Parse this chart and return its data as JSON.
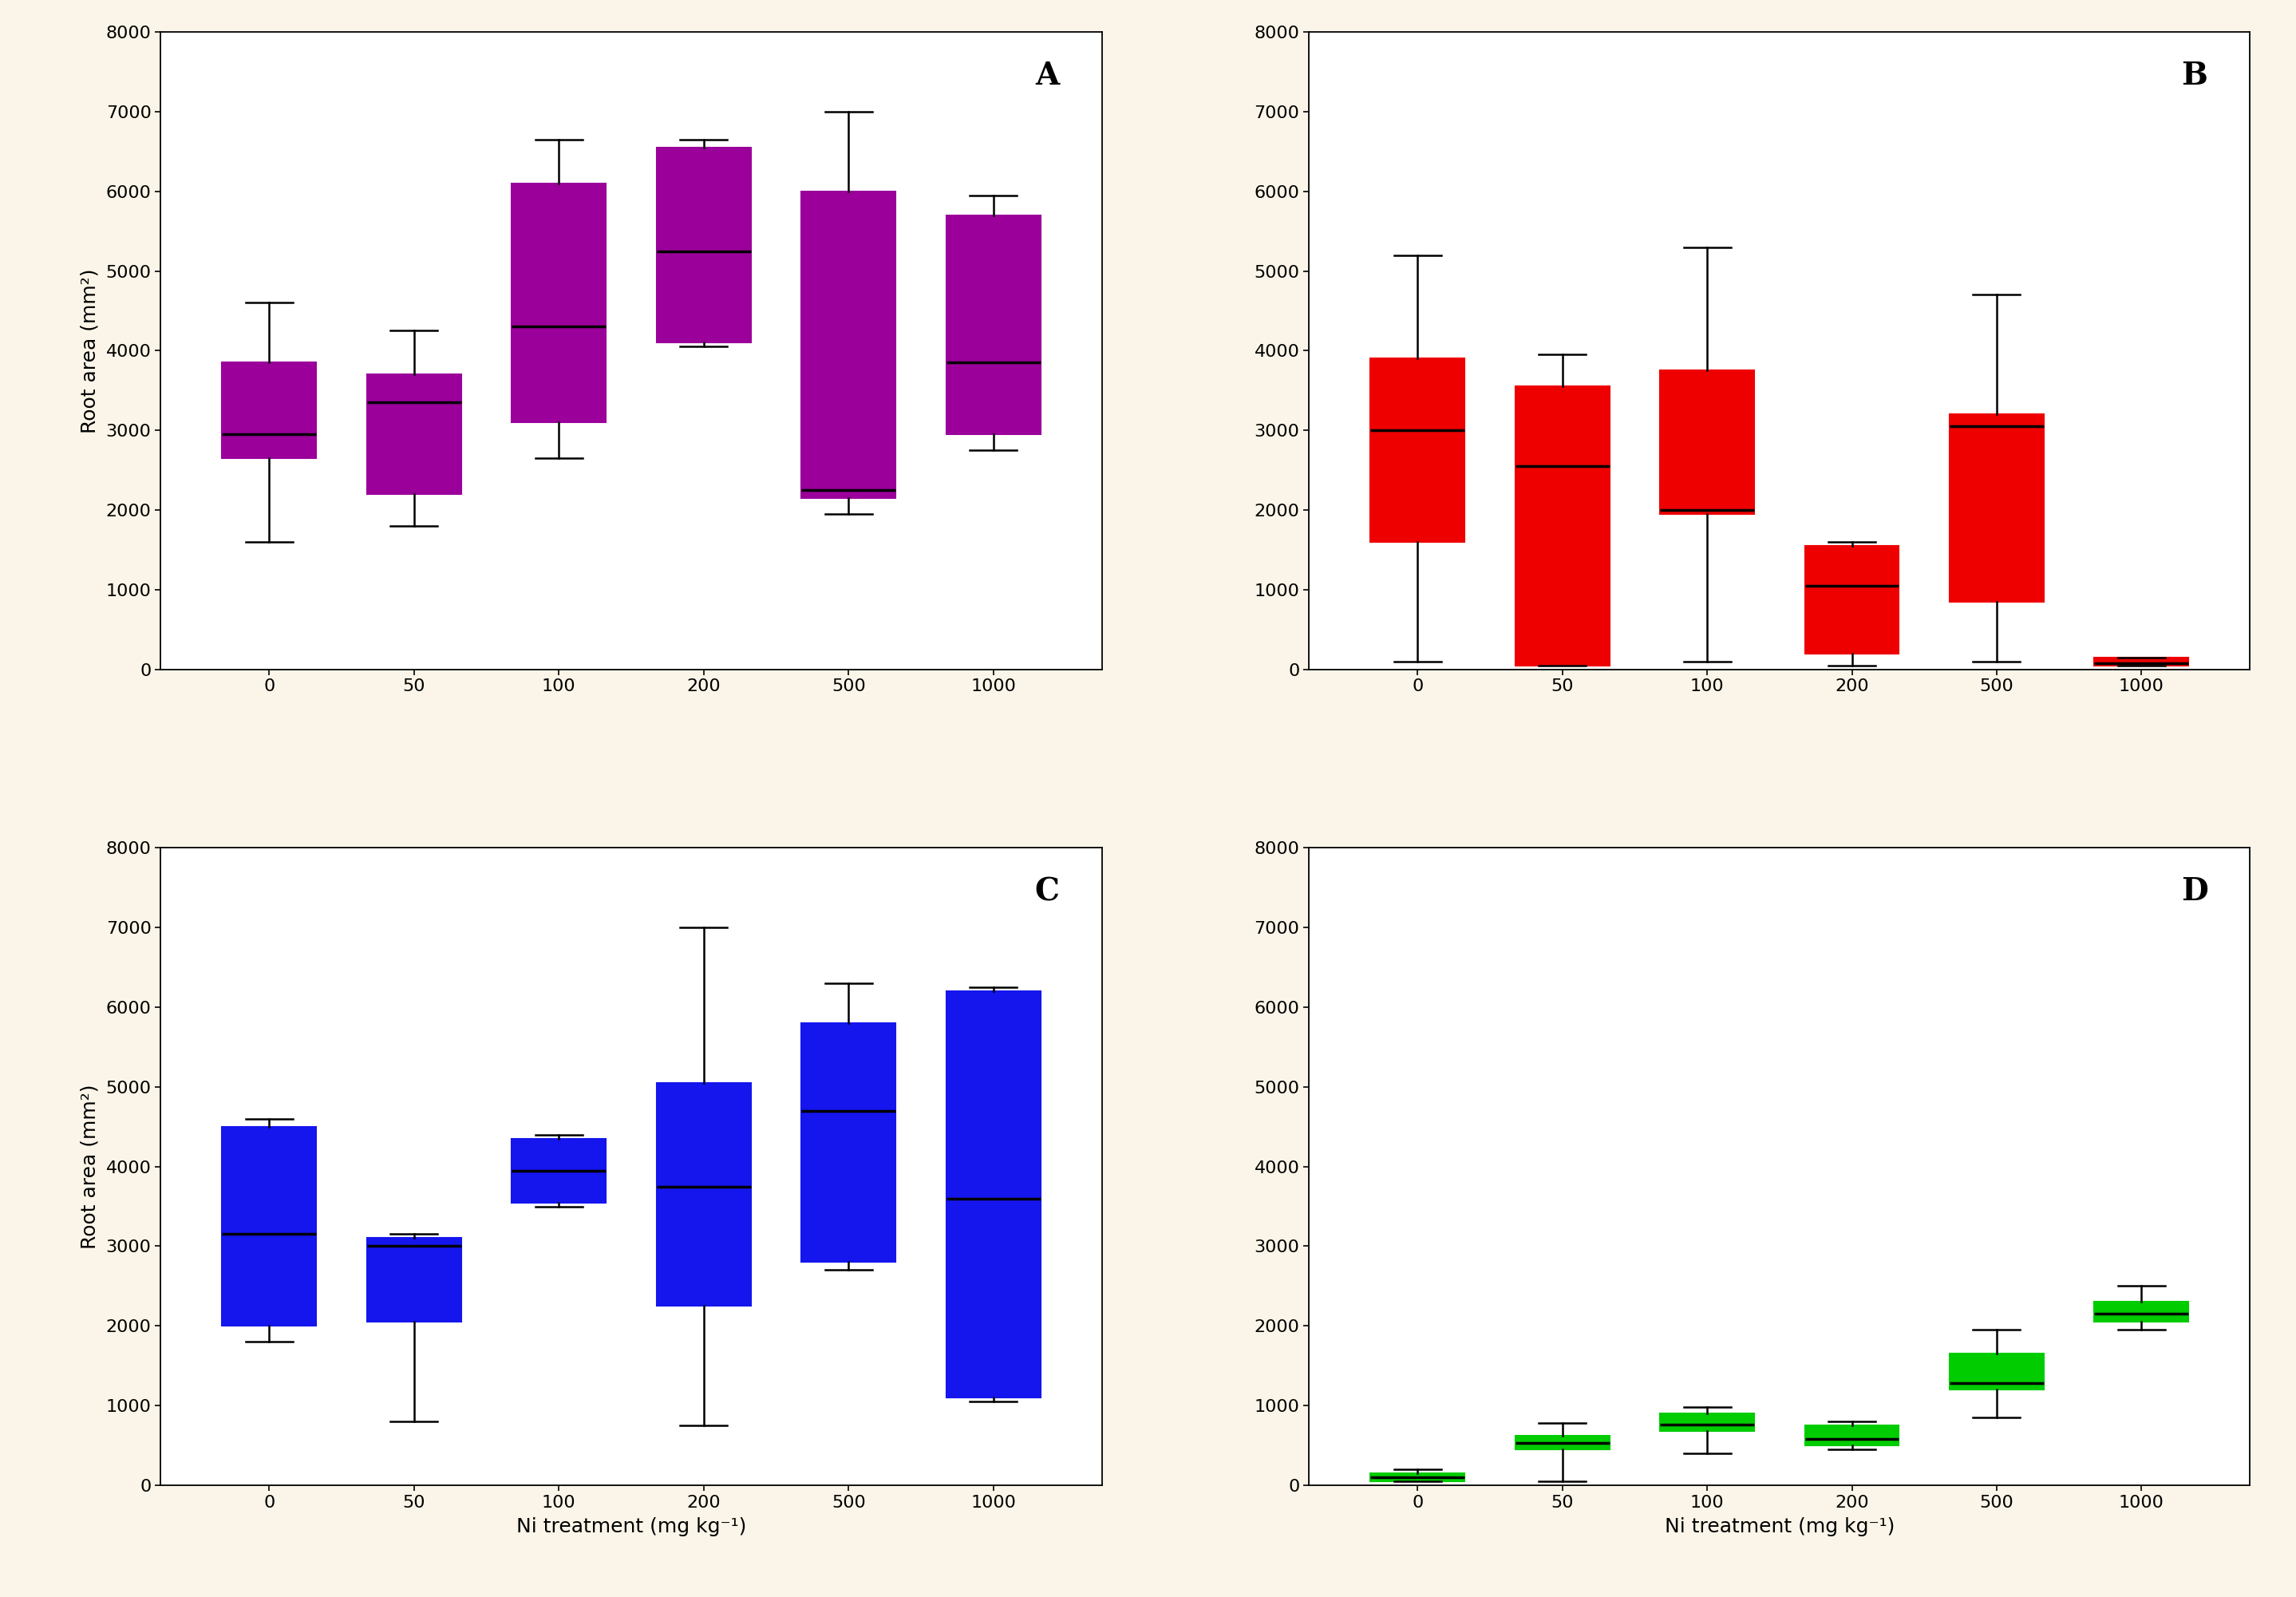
{
  "background_color": "#faf5e8",
  "panel_bg": "#ffffff",
  "categories": [
    0,
    50,
    100,
    200,
    500,
    1000
  ],
  "panels": [
    {
      "label": "A",
      "color": "#9b009b",
      "boxes": [
        {
          "whislo": 1600,
          "q1": 2650,
          "med": 2950,
          "q3": 3850,
          "whishi": 4600
        },
        {
          "whislo": 1800,
          "q1": 2200,
          "med": 3350,
          "q3": 3700,
          "whishi": 4250
        },
        {
          "whislo": 2650,
          "q1": 3100,
          "med": 4300,
          "q3": 6100,
          "whishi": 6650
        },
        {
          "whislo": 4050,
          "q1": 4100,
          "med": 5250,
          "q3": 6550,
          "whishi": 6650
        },
        {
          "whislo": 1950,
          "q1": 2150,
          "med": 2250,
          "q3": 6000,
          "whishi": 7000
        },
        {
          "whislo": 2750,
          "q1": 2950,
          "med": 3850,
          "q3": 5700,
          "whishi": 5950
        }
      ],
      "ylabel": "Root area (mm²)",
      "xlabel": ""
    },
    {
      "label": "B",
      "color": "#ee0000",
      "boxes": [
        {
          "whislo": 100,
          "q1": 1600,
          "med": 3000,
          "q3": 3900,
          "whishi": 5200
        },
        {
          "whislo": 50,
          "q1": 50,
          "med": 2550,
          "q3": 3550,
          "whishi": 3950
        },
        {
          "whislo": 100,
          "q1": 1950,
          "med": 2000,
          "q3": 3750,
          "whishi": 5300
        },
        {
          "whislo": 50,
          "q1": 200,
          "med": 1050,
          "q3": 1550,
          "whishi": 1600
        },
        {
          "whislo": 100,
          "q1": 850,
          "med": 3050,
          "q3": 3200,
          "whishi": 4700
        },
        {
          "whislo": 50,
          "q1": 50,
          "med": 80,
          "q3": 150,
          "whishi": 150
        }
      ],
      "ylabel": "",
      "xlabel": ""
    },
    {
      "label": "C",
      "color": "#1515ee",
      "boxes": [
        {
          "whislo": 1800,
          "q1": 2000,
          "med": 3150,
          "q3": 4500,
          "whishi": 4600
        },
        {
          "whislo": 800,
          "q1": 2050,
          "med": 3000,
          "q3": 3100,
          "whishi": 3150
        },
        {
          "whislo": 3500,
          "q1": 3550,
          "med": 3950,
          "q3": 4350,
          "whishi": 4400
        },
        {
          "whislo": 750,
          "q1": 2250,
          "med": 3750,
          "q3": 5050,
          "whishi": 7000
        },
        {
          "whislo": 2700,
          "q1": 2800,
          "med": 4700,
          "q3": 5800,
          "whishi": 6300
        },
        {
          "whislo": 1050,
          "q1": 1100,
          "med": 3600,
          "q3": 6200,
          "whishi": 6250
        }
      ],
      "ylabel": "Root area (mm²)",
      "xlabel": "Ni treatment (mg kg⁻¹)"
    },
    {
      "label": "D",
      "color": "#00cc00",
      "boxes": [
        {
          "whislo": 50,
          "q1": 50,
          "med": 100,
          "q3": 150,
          "whishi": 200
        },
        {
          "whislo": 50,
          "q1": 450,
          "med": 530,
          "q3": 620,
          "whishi": 780
        },
        {
          "whislo": 400,
          "q1": 680,
          "med": 760,
          "q3": 900,
          "whishi": 980
        },
        {
          "whislo": 450,
          "q1": 500,
          "med": 580,
          "q3": 750,
          "whishi": 800
        },
        {
          "whislo": 850,
          "q1": 1200,
          "med": 1280,
          "q3": 1650,
          "whishi": 1950
        },
        {
          "whislo": 1950,
          "q1": 2050,
          "med": 2150,
          "q3": 2300,
          "whishi": 2500
        }
      ],
      "ylabel": "",
      "xlabel": "Ni treatment (mg kg⁻¹)"
    }
  ]
}
